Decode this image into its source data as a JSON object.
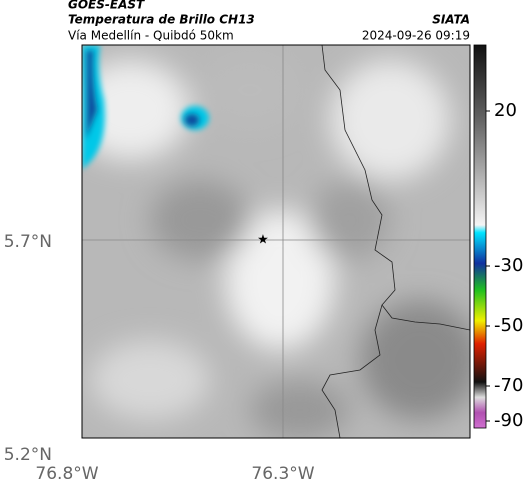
{
  "header": {
    "source": "GOES-EAST",
    "product": "Temperatura de Brillo CH13",
    "route": "Vía Medellín - Quibdó 50km",
    "agency": "SIATA",
    "datetime": "2024-09-26 09:19"
  },
  "map": {
    "lat_labels": [
      "5.7°N",
      "5.2°N"
    ],
    "lon_labels": [
      "76.8°W",
      "76.3°W"
    ]
  },
  "colorbar": {
    "ticks": [
      "20",
      "-30",
      "-50",
      "-70",
      "-90"
    ]
  }
}
